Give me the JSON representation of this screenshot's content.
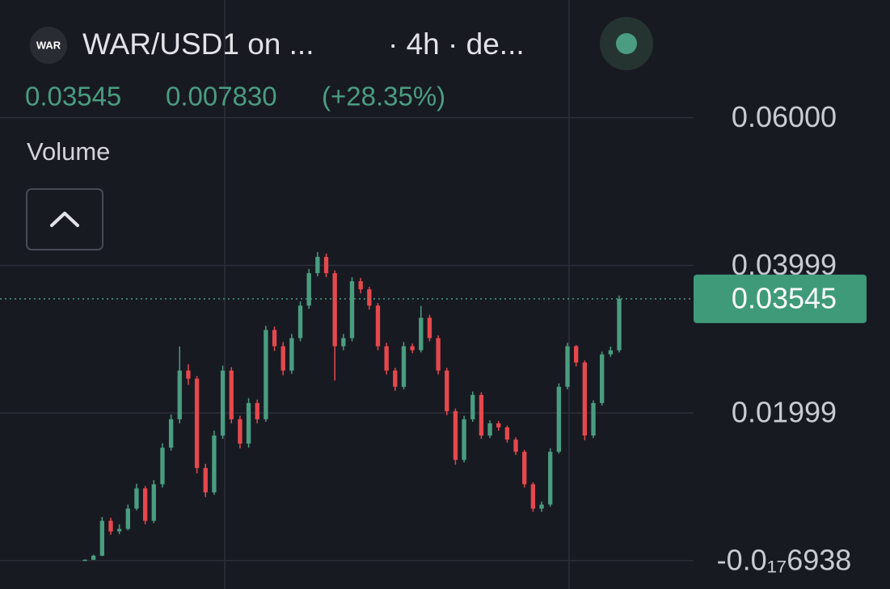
{
  "chart_data": {
    "type": "candlestick",
    "logo_text": "WAR",
    "title": "WAR/USD1 on ...",
    "interval": "· 4h · de...",
    "last_price": 0.03545,
    "change": "0.007830",
    "change_pct": "(+28.35%)",
    "indicator": "Volume",
    "up_color": "#4a9d80",
    "down_color": "#e5484d",
    "grid": true,
    "ylim": [
      -0.00385,
      0.07594
    ],
    "yticks": [
      {
        "value": 0.06,
        "label": "0.06000"
      },
      0.03999,
      0.01999,
      {
        "value": -6.938e-18,
        "label": "-0.0₁₇6938"
      }
    ],
    "open": [
      0.0001,
      0.00011,
      0.00066,
      0.00539,
      0.00396,
      0.00429,
      0.00704,
      0.00979,
      0.00539,
      0.01034,
      0.01529,
      0.01914,
      0.02574,
      0.02464,
      0.01254,
      0.00924,
      0.01694,
      0.02574,
      0.01914,
      0.01584,
      0.02134,
      0.01914,
      0.03124,
      0.02904,
      0.02574,
      0.03014,
      0.03454,
      0.03894,
      0.04114,
      0.03894,
      0.02904,
      0.03014,
      0.03784,
      0.03674,
      0.03454,
      0.02904,
      0.02574,
      0.02354,
      0.02904,
      0.0285,
      0.03289,
      0.03014,
      0.02574,
      0.02024,
      0.01364,
      0.01914,
      0.02244,
      0.01694,
      0.01859,
      0.01804,
      0.01639,
      0.01474,
      0.01034,
      0.00704,
      0.00759,
      0.01474,
      0.02354,
      0.02904,
      0.02684,
      0.01694,
      0.02134,
      0.02794,
      0.02849
    ],
    "high": [
      0.00015,
      0.0008,
      0.0059,
      0.0058,
      0.0049,
      0.0076,
      0.0104,
      0.0101,
      0.0109,
      0.0159,
      0.0198,
      0.029,
      0.0266,
      0.025,
      0.0131,
      0.0176,
      0.0264,
      0.0262,
      0.0196,
      0.022,
      0.0218,
      0.0318,
      0.0317,
      0.0296,
      0.0307,
      0.0351,
      0.0395,
      0.0418,
      0.0416,
      0.0393,
      0.0307,
      0.0384,
      0.0383,
      0.0371,
      0.0349,
      0.0295,
      0.0261,
      0.0296,
      0.0294,
      0.0345,
      0.0333,
      0.0305,
      0.0261,
      0.0206,
      0.0196,
      0.0229,
      0.0228,
      0.019,
      0.0189,
      0.0183,
      0.0167,
      0.015,
      0.0106,
      0.008,
      0.0152,
      0.024,
      0.0295,
      0.0292,
      0.0271,
      0.0217,
      0.0283,
      0.029,
      0.0359
    ],
    "low": [
      5e-05,
      8e-05,
      0.0006,
      0.0035,
      0.0036,
      0.0041,
      0.0068,
      0.0049,
      0.0051,
      0.0099,
      0.0149,
      0.0186,
      0.0238,
      0.0118,
      0.0086,
      0.0089,
      0.0165,
      0.0186,
      0.0152,
      0.0153,
      0.0186,
      0.0188,
      0.0284,
      0.0251,
      0.0253,
      0.0297,
      0.0341,
      0.0385,
      0.0384,
      0.0244,
      0.0285,
      0.0297,
      0.0362,
      0.034,
      0.0285,
      0.0252,
      0.023,
      0.0232,
      0.0281,
      0.0282,
      0.0297,
      0.0252,
      0.0197,
      0.013,
      0.0133,
      0.0188,
      0.0165,
      0.0166,
      0.0176,
      0.016,
      0.0143,
      0.0099,
      0.0066,
      0.0066,
      0.0073,
      0.0145,
      0.0232,
      0.0263,
      0.0163,
      0.0166,
      0.021,
      0.0276,
      0.0282
    ],
    "close": [
      0.00011,
      0.00066,
      0.00539,
      0.00396,
      0.00429,
      0.00704,
      0.00979,
      0.00539,
      0.01034,
      0.01529,
      0.01914,
      0.02574,
      0.02464,
      0.01254,
      0.00924,
      0.01694,
      0.02574,
      0.01914,
      0.01584,
      0.02134,
      0.01914,
      0.03124,
      0.02904,
      0.02574,
      0.03014,
      0.03454,
      0.03894,
      0.04114,
      0.03894,
      0.02904,
      0.03014,
      0.03784,
      0.03674,
      0.03454,
      0.02904,
      0.02574,
      0.02354,
      0.02904,
      0.0285,
      0.03289,
      0.03014,
      0.02574,
      0.02024,
      0.01364,
      0.01914,
      0.02244,
      0.01694,
      0.01859,
      0.01804,
      0.01639,
      0.01474,
      0.01034,
      0.00704,
      0.00759,
      0.01474,
      0.02354,
      0.02904,
      0.02684,
      0.01694,
      0.02134,
      0.02794,
      0.02849,
      0.03545
    ]
  }
}
